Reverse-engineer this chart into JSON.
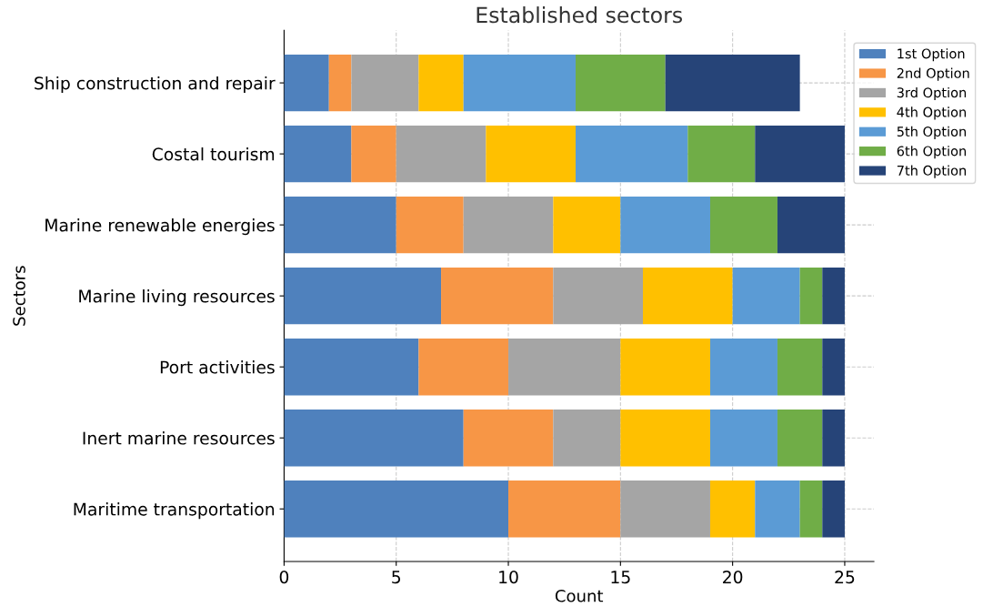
{
  "chart_data": {
    "type": "bar",
    "orientation": "horizontal",
    "stacked": true,
    "title": "Established sectors",
    "xlabel": "Count",
    "ylabel": "Sectors",
    "categories": [
      "Ship construction and repair",
      "Costal tourism",
      "Marine renewable energies",
      "Marine living resources",
      "Port activities",
      "Inert marine resources",
      "Maritime transportation"
    ],
    "series": [
      {
        "name": "1st Option",
        "color": "#4f81bd",
        "values": [
          2,
          3,
          5,
          7,
          6,
          8,
          10
        ]
      },
      {
        "name": "2nd Option",
        "color": "#f79646",
        "values": [
          1,
          2,
          3,
          5,
          4,
          4,
          5
        ]
      },
      {
        "name": "3rd Option",
        "color": "#a5a5a5",
        "values": [
          3,
          4,
          4,
          4,
          5,
          3,
          4
        ]
      },
      {
        "name": "4th Option",
        "color": "#ffc000",
        "values": [
          2,
          4,
          3,
          4,
          4,
          4,
          2
        ]
      },
      {
        "name": "5th Option",
        "color": "#5b9bd5",
        "values": [
          5,
          5,
          4,
          3,
          3,
          3,
          2
        ]
      },
      {
        "name": "6th Option",
        "color": "#70ad47",
        "values": [
          4,
          3,
          3,
          1,
          2,
          2,
          1
        ]
      },
      {
        "name": "7th Option",
        "color": "#264478",
        "values": [
          6,
          4,
          3,
          1,
          1,
          1,
          1
        ]
      }
    ],
    "xlim": [
      0,
      26.3
    ],
    "xticks": [
      0,
      5,
      10,
      15,
      20,
      25
    ],
    "grid": true,
    "legend": "top right"
  }
}
